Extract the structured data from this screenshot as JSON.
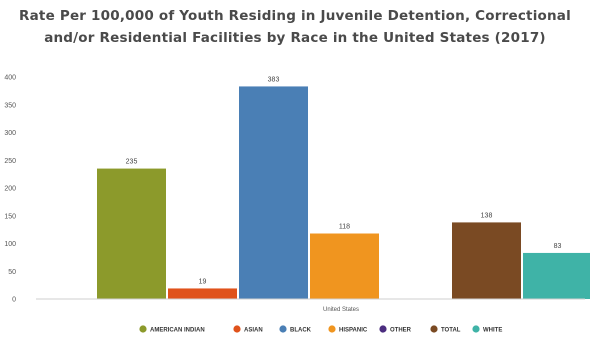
{
  "chart_data": {
    "type": "bar",
    "title_line1": "Rate Per 100,000 of Youth Residing in Juvenile Detention, Correctional",
    "title_line2": "and/or Residential Facilities by Race in the United States (2017)",
    "categories": [
      "United States"
    ],
    "ylim": [
      0,
      400
    ],
    "yticks": [
      "0",
      "50",
      "100",
      "150",
      "200",
      "250",
      "300",
      "350",
      "400"
    ],
    "series": [
      {
        "name": "AMERICAN INDIAN",
        "values": [
          235
        ],
        "color": "#8c9a2b"
      },
      {
        "name": "ASIAN",
        "values": [
          19
        ],
        "color": "#e0521b"
      },
      {
        "name": "BLACK",
        "values": [
          383
        ],
        "color": "#4a7fb5"
      },
      {
        "name": "HISPANIC",
        "values": [
          118
        ],
        "color": "#f0951f"
      },
      {
        "name": "OTHER",
        "values": [
          null
        ],
        "color": "#4b2d7f"
      },
      {
        "name": "TOTAL",
        "values": [
          138
        ],
        "color": "#7a4a23"
      },
      {
        "name": "WHITE",
        "values": [
          83
        ],
        "color": "#3fb3a7"
      }
    ],
    "grid": false,
    "legend_position": "bottom"
  }
}
